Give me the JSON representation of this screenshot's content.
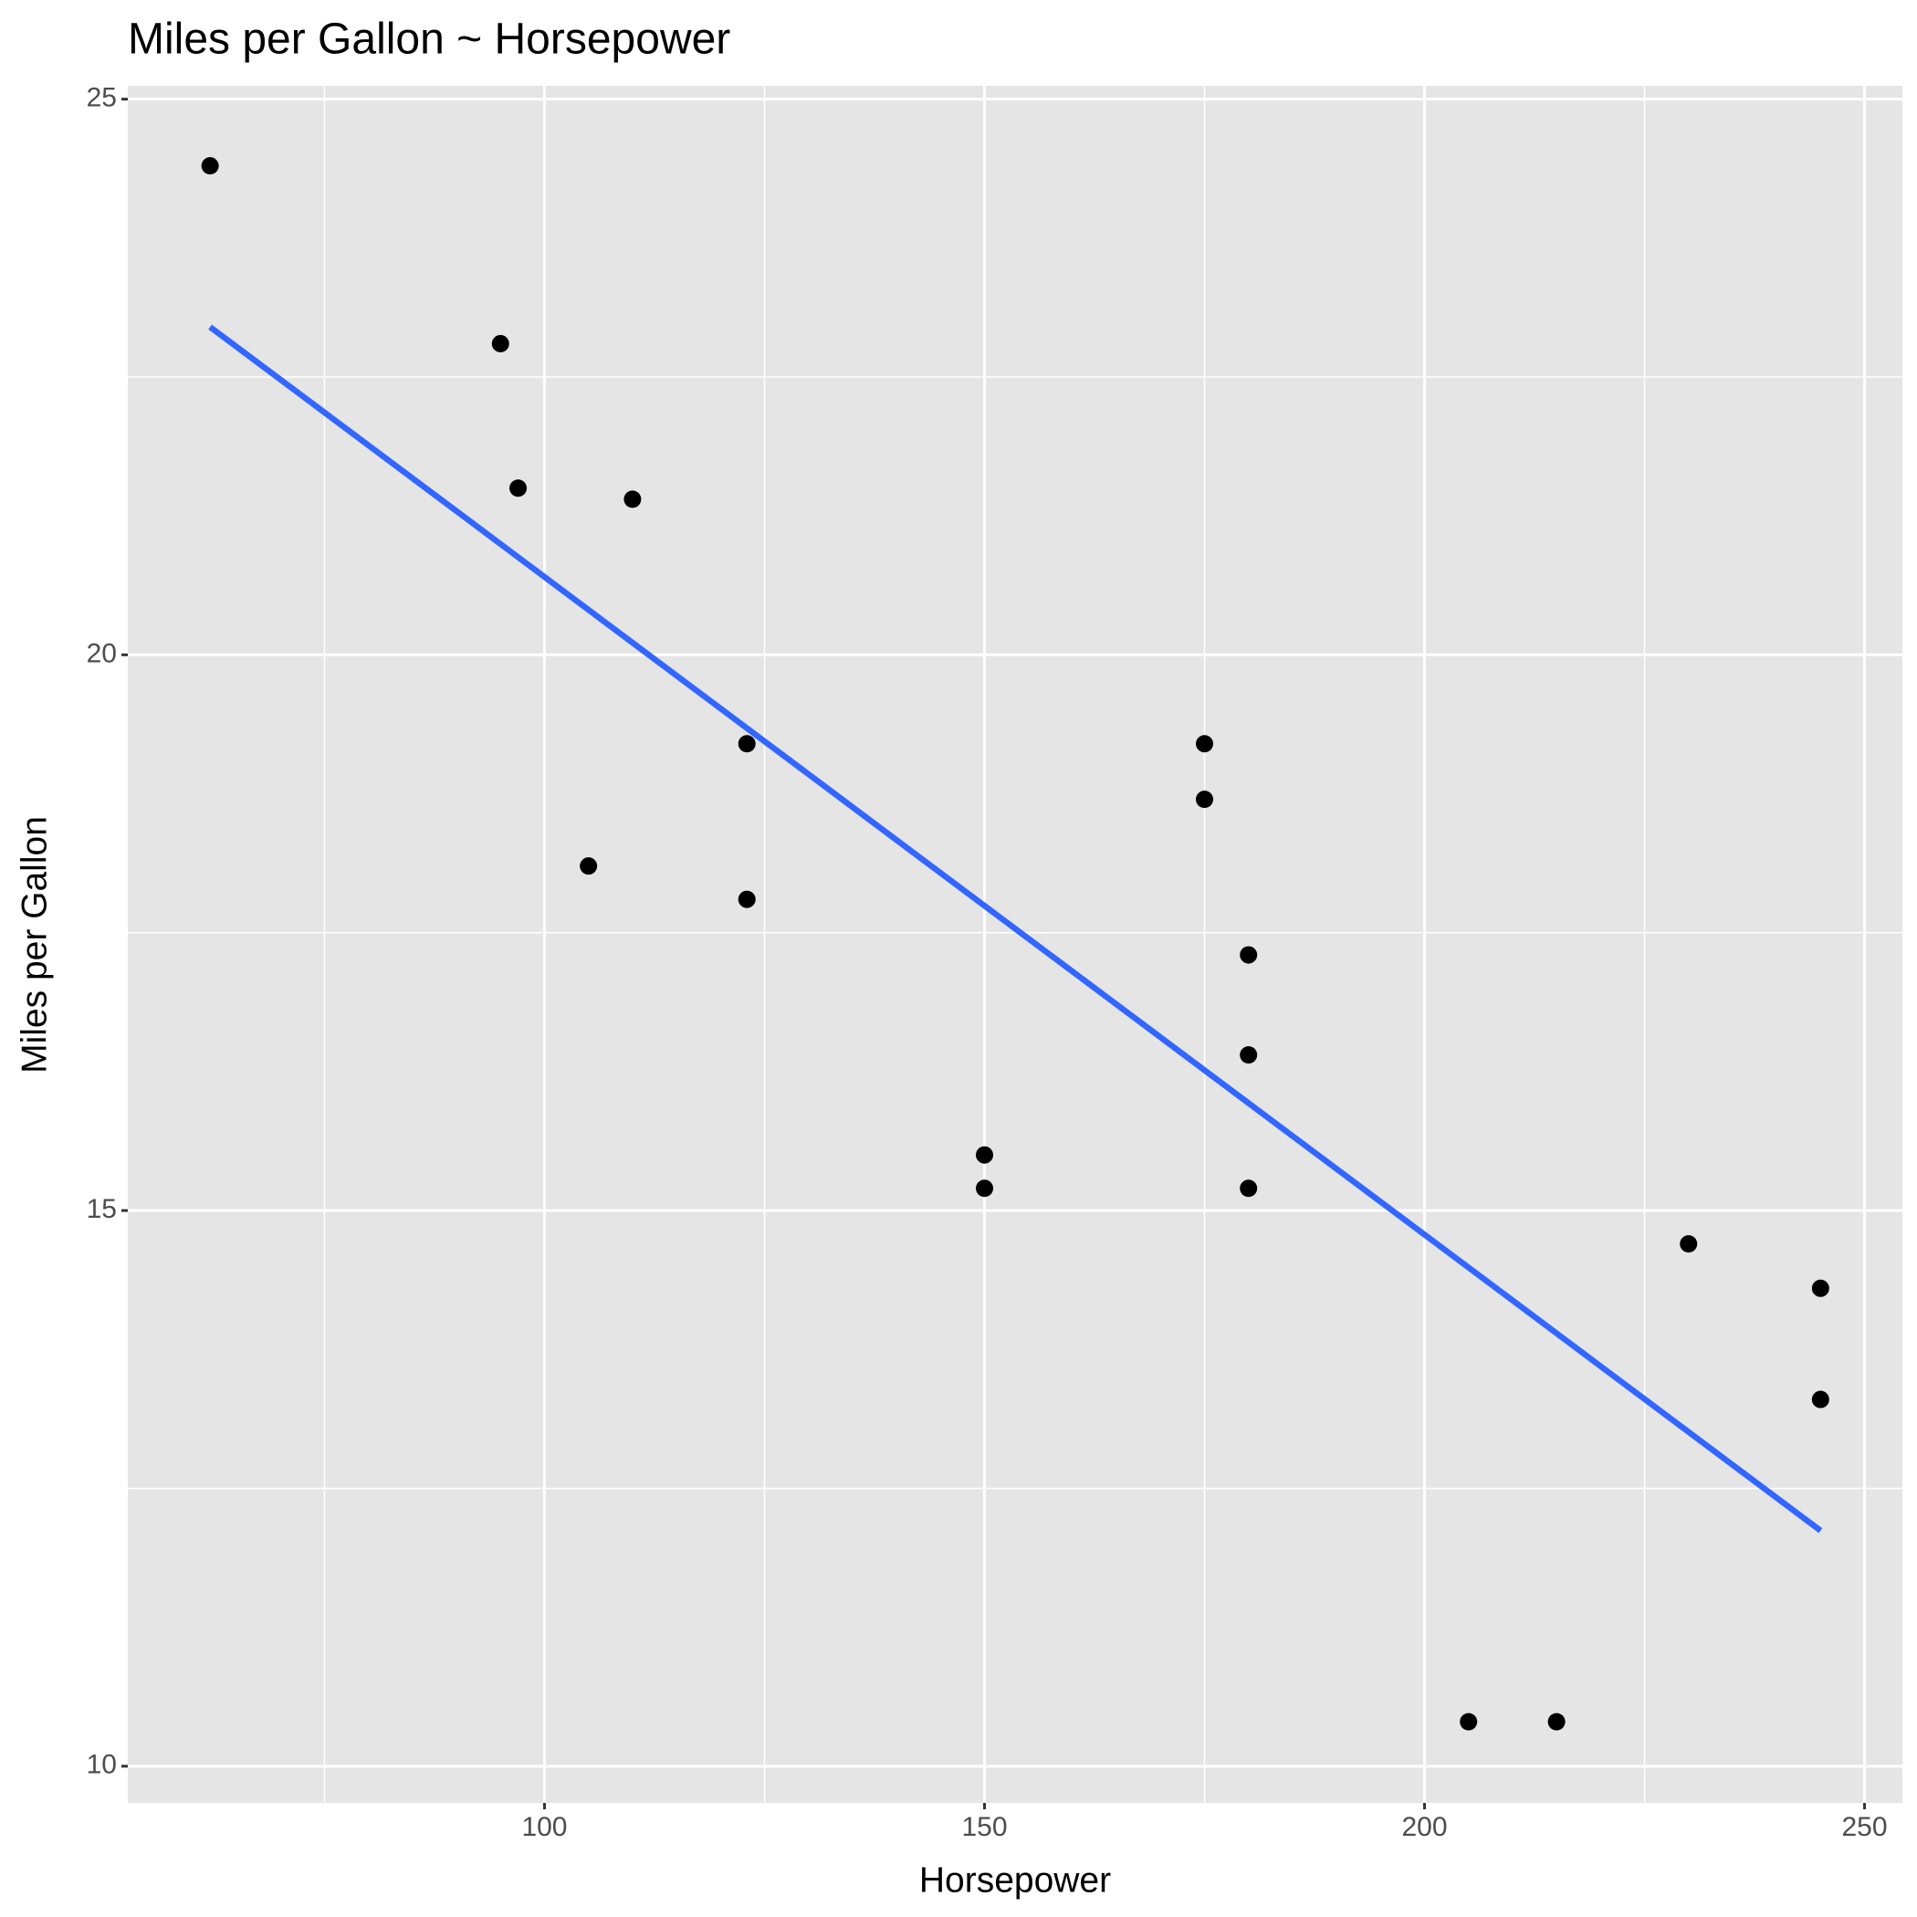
{
  "chart_data": {
    "type": "scatter",
    "title": "Miles per Gallon ~ Horsepower",
    "xlabel": "Horsepower",
    "ylabel": "Miles per Gallon",
    "series": [
      {
        "color": "#000000",
        "x": [
          62,
          95,
          97,
          110,
          105,
          123,
          123,
          150,
          150,
          175,
          175,
          180,
          180,
          180,
          205,
          215,
          230,
          245,
          245
        ],
        "values": [
          24.4,
          22.8,
          21.5,
          21.4,
          18.1,
          19.2,
          17.8,
          15.5,
          15.2,
          19.2,
          18.7,
          17.3,
          16.4,
          15.2,
          10.4,
          10.4,
          14.7,
          14.3,
          13.3
        ]
      },
      {
        "type": "line",
        "color": "#3366FF",
        "x": [
          62,
          245
        ],
        "values": [
          22.95,
          12.12
        ]
      }
    ],
    "xlim": [
      52.65,
      254.3
    ],
    "ylim": [
      9.67,
      25.12
    ],
    "xticks": [
      100,
      150,
      200,
      250
    ],
    "yticks": [
      10,
      15,
      20,
      25
    ],
    "xminor": [
      75,
      125,
      175,
      225
    ],
    "yminor": [
      12.5,
      17.5,
      22.5
    ],
    "grid": true
  }
}
